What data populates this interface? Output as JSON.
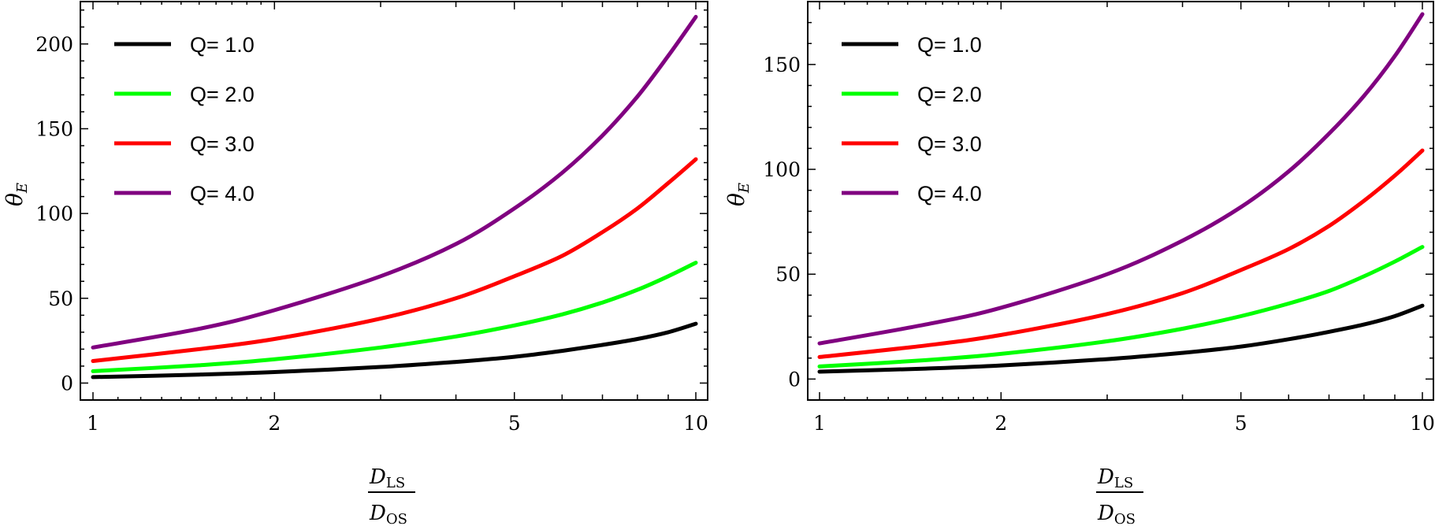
{
  "chart_data": [
    {
      "type": "line",
      "x_scale": "log",
      "xlim": [
        1,
        10
      ],
      "ylim": [
        -10,
        225
      ],
      "xticks": [
        1,
        2,
        5,
        10
      ],
      "yticks": [
        0,
        50,
        100,
        150,
        200
      ],
      "xlabel": {
        "num": "D",
        "num_sub": "LS",
        "den": "D",
        "den_sub": "OS"
      },
      "ylabel": {
        "main": "θ",
        "sub": "E"
      },
      "legend_position": "top-left",
      "x": [
        1,
        1.5,
        2,
        3,
        4,
        5,
        6,
        7,
        8,
        9,
        10
      ],
      "series": [
        {
          "name": "Q= 1.0",
          "color": "#000000",
          "values": [
            3.5,
            5,
            6.5,
            9.5,
            12.5,
            15.5,
            19,
            22.5,
            26,
            30,
            35
          ]
        },
        {
          "name": "Q= 2.0",
          "color": "#00ff00",
          "values": [
            7,
            10.5,
            14,
            21,
            27.5,
            34,
            40.5,
            47.5,
            55,
            63,
            71
          ]
        },
        {
          "name": "Q= 3.0",
          "color": "#ff0000",
          "values": [
            13,
            20,
            26,
            38,
            50,
            63,
            75,
            89,
            103,
            118,
            132
          ]
        },
        {
          "name": "Q= 4.0",
          "color": "#800080",
          "values": [
            21,
            32,
            43,
            63,
            82,
            103,
            124,
            146,
            169,
            193,
            216
          ]
        }
      ]
    },
    {
      "type": "line",
      "x_scale": "log",
      "xlim": [
        1,
        10
      ],
      "ylim": [
        -10,
        180
      ],
      "xticks": [
        1,
        2,
        5,
        10
      ],
      "yticks": [
        0,
        50,
        100,
        150
      ],
      "xlabel": {
        "num": "D",
        "num_sub": "LS",
        "den": "D",
        "den_sub": "OS"
      },
      "ylabel": {
        "main": "θ",
        "sub": "E"
      },
      "legend_position": "top-left",
      "x": [
        1,
        1.5,
        2,
        3,
        4,
        5,
        6,
        7,
        8,
        9,
        10
      ],
      "series": [
        {
          "name": "Q= 1.0",
          "color": "#000000",
          "values": [
            3.5,
            5,
            6.5,
            9.5,
            12.5,
            15.5,
            19,
            22.5,
            26,
            30,
            35
          ]
        },
        {
          "name": "Q= 2.0",
          "color": "#00ff00",
          "values": [
            6,
            9,
            12,
            18,
            24,
            30,
            36,
            42,
            49,
            56,
            63
          ]
        },
        {
          "name": "Q= 3.0",
          "color": "#ff0000",
          "values": [
            10.5,
            16,
            21,
            31,
            41,
            52,
            62,
            73,
            85,
            97,
            109
          ]
        },
        {
          "name": "Q= 4.0",
          "color": "#800080",
          "values": [
            17,
            26,
            34,
            50,
            66,
            82,
            99,
            117,
            135,
            154,
            174
          ]
        }
      ]
    }
  ]
}
